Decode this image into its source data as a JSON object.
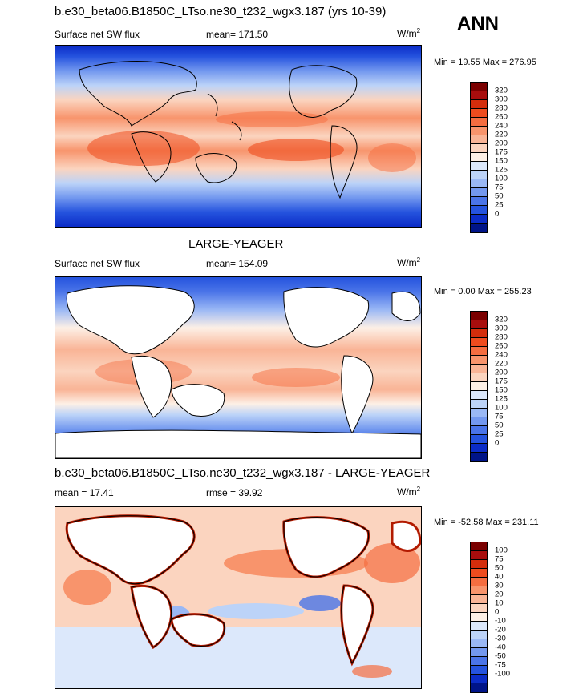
{
  "season": "ANN",
  "panels": [
    {
      "title": "b.e30_beta06.B1850C_LTso.ne30_t232_wgx3.187 (yrs 10-39)",
      "left_text": "Surface net SW flux",
      "center_text": "mean= 171.50",
      "units_base": "W/m",
      "units_exp": "2",
      "minmax": "Min =  19.55 Max = 276.95",
      "colorbar": {
        "levels": [
          "320",
          "300",
          "280",
          "260",
          "240",
          "220",
          "200",
          "175",
          "150",
          "125",
          "100",
          "75",
          "50",
          "25",
          "0"
        ],
        "colors": [
          "#7a0000",
          "#a80d0d",
          "#d42d0c",
          "#ef4c1e",
          "#f56d40",
          "#f8946c",
          "#f9b496",
          "#fbd4bf",
          "#fdf0e6",
          "#dce8fb",
          "#bcd3f8",
          "#9ab8f5",
          "#7398ef",
          "#4a74e8",
          "#2553de",
          "#0b2cc7",
          "#001488"
        ]
      },
      "has_land_mask": false
    },
    {
      "title": "LARGE-YEAGER",
      "left_text": "Surface net SW flux",
      "center_text": "mean= 154.09",
      "units_base": "W/m",
      "units_exp": "2",
      "minmax": "Min =   0.00 Max = 255.23",
      "colorbar": {
        "levels": [
          "320",
          "300",
          "280",
          "260",
          "240",
          "220",
          "200",
          "175",
          "150",
          "125",
          "100",
          "75",
          "50",
          "25",
          "0"
        ],
        "colors": [
          "#7a0000",
          "#a80d0d",
          "#d42d0c",
          "#ef4c1e",
          "#f56d40",
          "#f8946c",
          "#f9b496",
          "#fbd4bf",
          "#fdf0e6",
          "#dce8fb",
          "#bcd3f8",
          "#9ab8f5",
          "#7398ef",
          "#4a74e8",
          "#2553de",
          "#0b2cc7",
          "#001488"
        ]
      },
      "has_land_mask": true
    },
    {
      "title": "b.e30_beta06.B1850C_LTso.ne30_t232_wgx3.187 - LARGE-YEAGER",
      "left_text": "mean =  17.41",
      "center_text": "rmse =  39.92",
      "units_base": "W/m",
      "units_exp": "2",
      "minmax": "Min = -52.58 Max = 231.11",
      "colorbar": {
        "levels": [
          "100",
          "75",
          "50",
          "40",
          "30",
          "20",
          "10",
          "0",
          "-10",
          "-20",
          "-30",
          "-40",
          "-50",
          "-75",
          "-100"
        ],
        "colors": [
          "#7a0000",
          "#a80d0d",
          "#d42d0c",
          "#ef4c1e",
          "#f56d40",
          "#f8946c",
          "#f9b496",
          "#fbd4bf",
          "#fdf0e6",
          "#dce8fb",
          "#bcd3f8",
          "#9ab8f5",
          "#7398ef",
          "#4a74e8",
          "#2553de",
          "#0b2cc7",
          "#001488"
        ]
      },
      "has_land_mask": true
    }
  ],
  "chart_data": [
    {
      "type": "heatmap",
      "title": "b.e30_beta06.B1850C_LTso.ne30_t232_wgx3.187 (yrs 10-39)",
      "field": "Surface net SW flux",
      "units": "W/m2",
      "mean": 171.5,
      "min": 19.55,
      "max": 276.95,
      "contour_levels": [
        0,
        25,
        50,
        75,
        100,
        125,
        150,
        175,
        200,
        220,
        240,
        260,
        280,
        300,
        320
      ]
    },
    {
      "type": "heatmap",
      "title": "LARGE-YEAGER",
      "field": "Surface net SW flux",
      "units": "W/m2",
      "mean": 154.09,
      "min": 0.0,
      "max": 255.23,
      "contour_levels": [
        0,
        25,
        50,
        75,
        100,
        125,
        150,
        175,
        200,
        220,
        240,
        260,
        280,
        300,
        320
      ]
    },
    {
      "type": "heatmap",
      "title": "b.e30_beta06.B1850C_LTso.ne30_t232_wgx3.187 - LARGE-YEAGER",
      "units": "W/m2",
      "mean": 17.41,
      "rmse": 39.92,
      "min": -52.58,
      "max": 231.11,
      "contour_levels": [
        -100,
        -75,
        -50,
        -40,
        -30,
        -20,
        -10,
        0,
        10,
        20,
        30,
        40,
        50,
        75,
        100
      ]
    }
  ]
}
